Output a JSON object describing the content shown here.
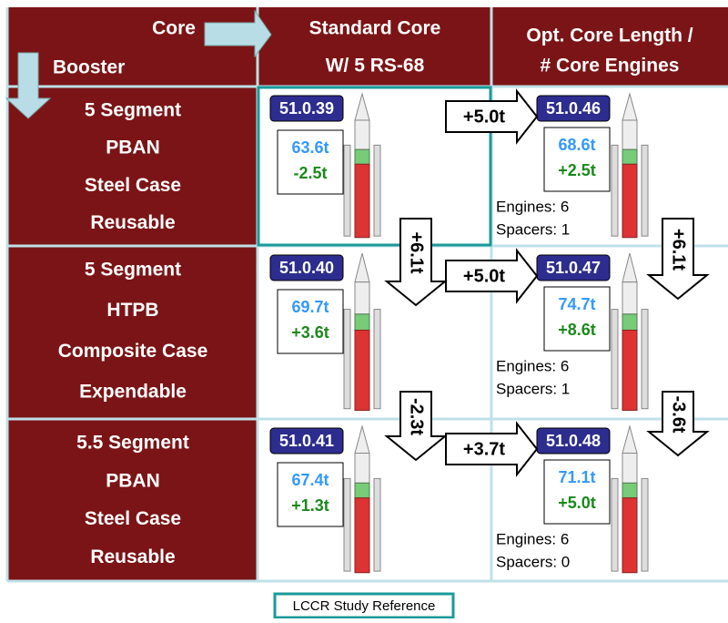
{
  "header": {
    "corner_core": "Core",
    "corner_booster": "Booster",
    "standard": [
      "Standard Core",
      "W/ 5 RS-68"
    ],
    "optimized": [
      "Opt. Core Length /",
      "# Core Engines"
    ]
  },
  "rows": [
    {
      "booster": [
        "5 Segment",
        "PBAN",
        "Steel Case",
        "Reusable"
      ],
      "standard": {
        "id": "51.0.39",
        "payload": "63.6t",
        "delta": "-2.5t"
      },
      "gain": "+5.0t",
      "optimized": {
        "id": "51.0.46",
        "payload": "68.6t",
        "delta": "+2.5t",
        "engines": "Engines: 6",
        "spacers": "Spacers: 1"
      }
    },
    {
      "booster": [
        "5 Segment",
        "HTPB",
        "Composite Case",
        "Expendable"
      ],
      "standard": {
        "id": "51.0.40",
        "payload": "69.7t",
        "delta": "+3.6t"
      },
      "gain": "+5.0t",
      "optimized": {
        "id": "51.0.47",
        "payload": "74.7t",
        "delta": "+8.6t",
        "engines": "Engines: 6",
        "spacers": "Spacers: 1"
      }
    },
    {
      "booster": [
        "5.5 Segment",
        "PBAN",
        "Steel Case",
        "Reusable"
      ],
      "standard": {
        "id": "51.0.41",
        "payload": "67.4t",
        "delta": "+1.3t"
      },
      "gain": "+3.7t",
      "optimized": {
        "id": "51.0.48",
        "payload": "71.1t",
        "delta": "+5.0t",
        "engines": "Engines: 6",
        "spacers": "Spacers: 0"
      }
    }
  ],
  "down_standard": [
    "+6.1t",
    "-2.3t"
  ],
  "down_optimized": [
    "+6.1t",
    "-3.6t"
  ],
  "legend": "LCCR Study Reference"
}
